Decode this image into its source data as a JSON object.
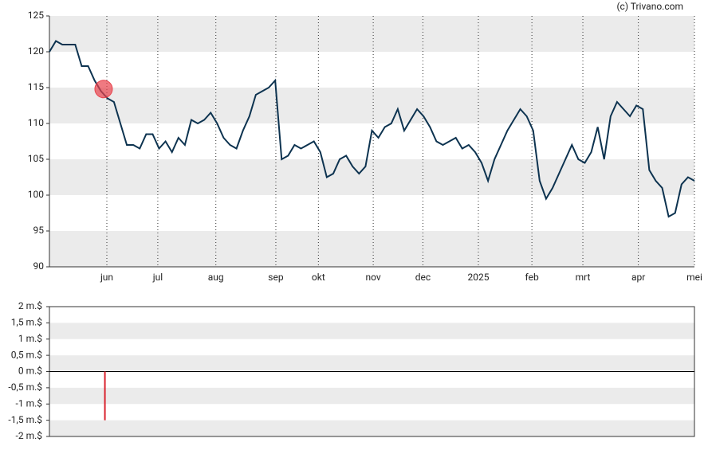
{
  "credit": "(c) Trivano.com",
  "chart_data": [
    {
      "type": "line",
      "series": [
        {
          "color": "#0d3350",
          "values": [
            120,
            121.5,
            121,
            121,
            121,
            118,
            118,
            116,
            114.5,
            113.5,
            113,
            110,
            107,
            107,
            106.5,
            108.5,
            108.5,
            106.5,
            107.5,
            106,
            108,
            107,
            110.5,
            110,
            110.5,
            111.5,
            110,
            108,
            107,
            106.5,
            109,
            111,
            114,
            114.5,
            115,
            116,
            105,
            105.5,
            107,
            106.5,
            107,
            107.5,
            106,
            102.5,
            103,
            105,
            105.5,
            104,
            103,
            104,
            109,
            108,
            109.5,
            110,
            112,
            109,
            110.5,
            112,
            111,
            109.5,
            107.5,
            107,
            107.5,
            108,
            106.5,
            107,
            106,
            104.5,
            102,
            105,
            107,
            109,
            110.5,
            112,
            111,
            109,
            102,
            99.5,
            101,
            103,
            105,
            107,
            105,
            104.5,
            106,
            109.5,
            105,
            111,
            113,
            112,
            111,
            112.5,
            112,
            103.5,
            102,
            101,
            97,
            97.5,
            101.5,
            102.5,
            102
          ]
        }
      ],
      "marker": {
        "x": 8.4,
        "value": 114.8,
        "color": "#e8424b"
      },
      "xlim": [
        0,
        100
      ],
      "xticks": [
        {
          "value": 8.9,
          "label": "jun"
        },
        {
          "value": 16.8,
          "label": "jul"
        },
        {
          "value": 25.8,
          "label": "aug"
        },
        {
          "value": 35.1,
          "label": "sep"
        },
        {
          "value": 41.7,
          "label": "okt"
        },
        {
          "value": 50.2,
          "label": "nov"
        },
        {
          "value": 57.9,
          "label": "dec"
        },
        {
          "value": 66.5,
          "label": "2025"
        },
        {
          "value": 74.8,
          "label": "feb"
        },
        {
          "value": 82.7,
          "label": "mrt"
        },
        {
          "value": 91.3,
          "label": "apr"
        },
        {
          "value": 100,
          "label": "mei"
        }
      ],
      "ylim": [
        90,
        125
      ],
      "yticks": [
        90,
        95,
        100,
        105,
        110,
        115,
        120,
        125
      ],
      "banded_grid": true
    },
    {
      "type": "bar",
      "x": [
        8.6
      ],
      "values": [
        -1.5
      ],
      "color": "#d9232e",
      "xlim": [
        0,
        100
      ],
      "ylim": [
        -2,
        2
      ],
      "yticks": [
        {
          "value": -2,
          "label": "-2 m.$"
        },
        {
          "value": -1.5,
          "label": "-1,5 m.$"
        },
        {
          "value": -1,
          "label": "-1 m.$"
        },
        {
          "value": -0.5,
          "label": "-0,5 m.$"
        },
        {
          "value": 0,
          "label": "0 m.$"
        },
        {
          "value": 0.5,
          "label": "0,5 m.$"
        },
        {
          "value": 1,
          "label": "1 m.$"
        },
        {
          "value": 1.5,
          "label": "1,5 m.$"
        },
        {
          "value": 2,
          "label": "2 m.$"
        }
      ],
      "banded_grid": true
    }
  ]
}
